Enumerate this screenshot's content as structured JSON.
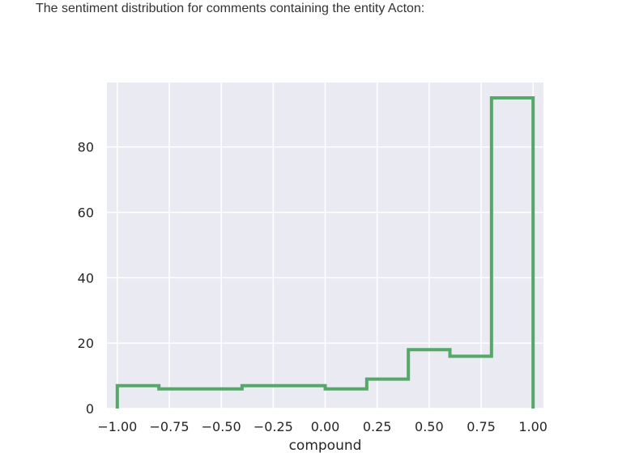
{
  "caption": "The sentiment distribution for comments containing the entity Acton:",
  "colors": {
    "plot_background": "#EAEAF2",
    "grid": "#FFFFFF",
    "series": "#55A868",
    "text": "#262626"
  },
  "chart_data": {
    "type": "histogram",
    "histtype": "step",
    "title": "",
    "xlabel": "compound",
    "ylabel": "",
    "bin_edges": [
      -1.0,
      -0.8,
      -0.6,
      -0.4,
      -0.2,
      0.0,
      0.2,
      0.4,
      0.6,
      0.8,
      1.0
    ],
    "counts": [
      7,
      6,
      6,
      7,
      7,
      6,
      9,
      18,
      16,
      95
    ],
    "xlim": [
      -1.05,
      1.05
    ],
    "ylim": [
      0,
      95
    ],
    "xticks": [
      -1.0,
      -0.75,
      -0.5,
      -0.25,
      0.0,
      0.25,
      0.5,
      0.75,
      1.0
    ],
    "xtick_labels": [
      "−1.00",
      "−0.75",
      "−0.50",
      "−0.25",
      "0.00",
      "0.25",
      "0.50",
      "0.75",
      "1.00"
    ],
    "yticks": [
      0,
      20,
      40,
      60,
      80
    ],
    "ytick_labels": [
      "0",
      "20",
      "40",
      "60",
      "80"
    ],
    "grid": true,
    "legend": "none"
  }
}
